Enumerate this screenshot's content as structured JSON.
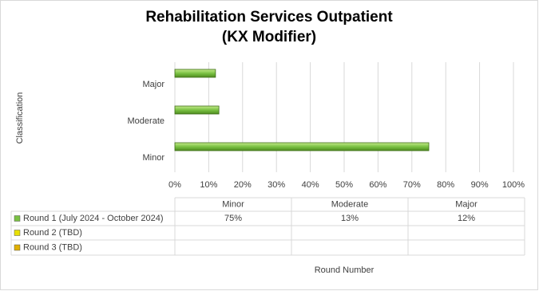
{
  "chart_data": {
    "type": "bar",
    "orientation": "horizontal",
    "title": [
      "Rehabilitation Services Outpatient",
      "(KX Modifier)"
    ],
    "ylabel": "Classification",
    "xlabel": "Round Number",
    "categories": [
      "Minor",
      "Moderate",
      "Major"
    ],
    "series": [
      {
        "name": "Round 1 (July 2024 - October 2024)",
        "color": "#7ac143",
        "values": [
          75,
          13,
          12
        ],
        "value_labels": [
          "75%",
          "13%",
          "12%"
        ]
      },
      {
        "name": "Round 2 (TBD)",
        "color": "#e8e000",
        "values": [
          null,
          null,
          null
        ]
      },
      {
        "name": "Round 3 (TBD)",
        "color": "#e0b000",
        "values": [
          null,
          null,
          null
        ]
      }
    ],
    "xlim": [
      0,
      100
    ],
    "xticks": [
      {
        "value": 0,
        "label": "0%"
      },
      {
        "value": 10,
        "label": "10%"
      },
      {
        "value": 20,
        "label": "20%"
      },
      {
        "value": 30,
        "label": "30%"
      },
      {
        "value": 40,
        "label": "40%"
      },
      {
        "value": 50,
        "label": "50%"
      },
      {
        "value": 60,
        "label": "60%"
      },
      {
        "value": 70,
        "label": "70%"
      },
      {
        "value": 80,
        "label": "80%"
      },
      {
        "value": 90,
        "label": "90%"
      },
      {
        "value": 100,
        "label": "100%"
      }
    ],
    "grid": true
  }
}
